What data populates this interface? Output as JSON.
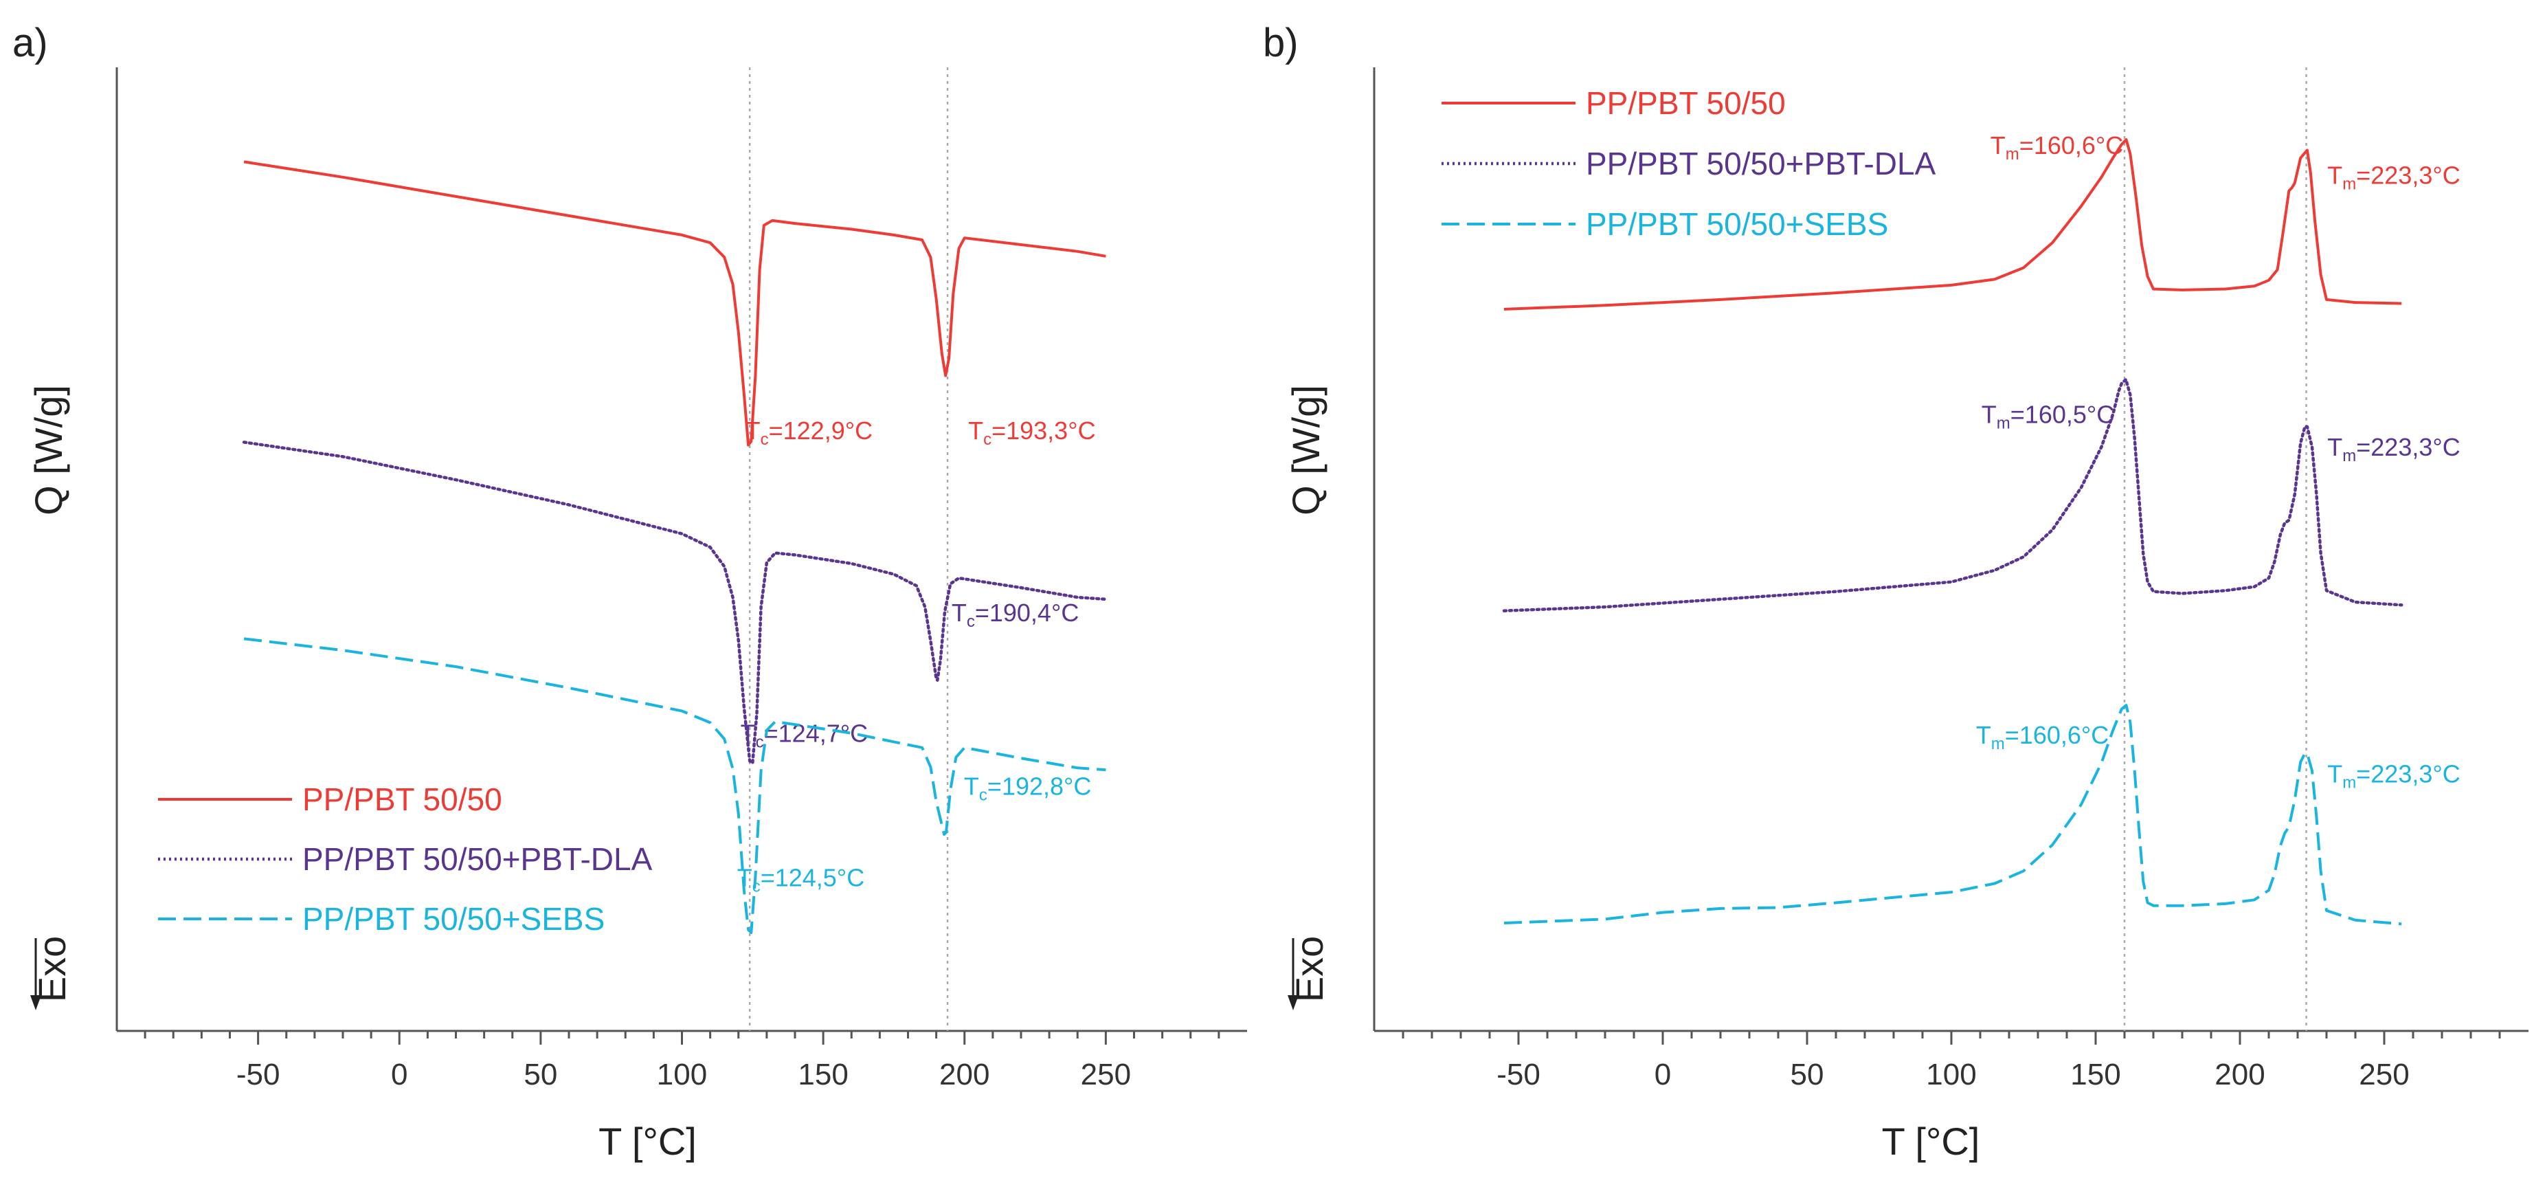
{
  "chart_data": [
    {
      "type": "line",
      "panel_label": "a)",
      "xlabel": "T [°C]",
      "ylabel": "Q [W/g]",
      "exo_label": "Exo",
      "xlim": [
        -100,
        300
      ],
      "xticks": [
        -50,
        0,
        50,
        100,
        150,
        200,
        250
      ],
      "ylim": [
        0,
        100
      ],
      "reference_lines_x": [
        124,
        194
      ],
      "legend": {
        "placement": "bottom-left",
        "entries": [
          "PP/PBT 50/50",
          "PP/PBT 50/50+PBT-DLA",
          "PP/PBT 50/50+SEBS"
        ]
      },
      "series": [
        {
          "name": "PP/PBT 50/50",
          "color": "#ef3b36",
          "dash": "solid",
          "points": [
            [
              -55,
              90.2
            ],
            [
              -20,
              88.6
            ],
            [
              20,
              86.6
            ],
            [
              60,
              84.6
            ],
            [
              100,
              82.6
            ],
            [
              110,
              81.8
            ],
            [
              115,
              80.3
            ],
            [
              118,
              77.5
            ],
            [
              120,
              72.5
            ],
            [
              122,
              66
            ],
            [
              123.5,
              60.8
            ],
            [
              124.5,
              61.2
            ],
            [
              126,
              68
            ],
            [
              127.5,
              79
            ],
            [
              129,
              83.6
            ],
            [
              132,
              84.1
            ],
            [
              140,
              83.8
            ],
            [
              160,
              83.2
            ],
            [
              175,
              82.6
            ],
            [
              185,
              82.1
            ],
            [
              188,
              80.3
            ],
            [
              190,
              76
            ],
            [
              192,
              70.3
            ],
            [
              193.3,
              68
            ],
            [
              194.5,
              69.8
            ],
            [
              196,
              76.5
            ],
            [
              198,
              81.2
            ],
            [
              200,
              82.3
            ],
            [
              220,
              81.6
            ],
            [
              240,
              80.9
            ],
            [
              250,
              80.4
            ]
          ],
          "annotations": [
            {
              "label": "Tc=122,9°C",
              "x": 122.9,
              "y": 63,
              "anchor": "start",
              "dx": -0.5,
              "dy": -1.6
            },
            {
              "label": "Tc=193,3°C",
              "x": 193.3,
              "y": 63,
              "anchor": "start",
              "dx": 8,
              "dy": -1.6
            }
          ]
        },
        {
          "name": "PP/PBT 50/50+PBT-DLA",
          "color": "#5a3590",
          "dash": "dot",
          "points": [
            [
              -55,
              61.1
            ],
            [
              -20,
              59.6
            ],
            [
              20,
              57.2
            ],
            [
              60,
              54.6
            ],
            [
              100,
              51.6
            ],
            [
              110,
              50.2
            ],
            [
              115,
              48.2
            ],
            [
              118,
              45
            ],
            [
              120,
              40.5
            ],
            [
              122,
              33.5
            ],
            [
              124,
              28
            ],
            [
              125,
              27.8
            ],
            [
              126.5,
              33
            ],
            [
              128,
              44
            ],
            [
              130,
              48.6
            ],
            [
              133,
              49.6
            ],
            [
              140,
              49.4
            ],
            [
              160,
              48.5
            ],
            [
              175,
              47.4
            ],
            [
              183,
              46.2
            ],
            [
              186,
              44
            ],
            [
              188,
              40.5
            ],
            [
              190,
              36.6
            ],
            [
              190.4,
              36.4
            ],
            [
              191.5,
              38.5
            ],
            [
              193,
              43.5
            ],
            [
              195,
              46.4
            ],
            [
              198,
              47
            ],
            [
              220,
              46
            ],
            [
              240,
              45
            ],
            [
              250,
              44.8
            ]
          ],
          "annotations": [
            {
              "label": "Tc=190,4°C",
              "x": 190.4,
              "y": 43,
              "anchor": "start",
              "dx": 5,
              "dy": -0.5
            },
            {
              "label": "Tc=124,7°C",
              "x": 124.7,
              "y": 30,
              "anchor": "start",
              "dx": -4,
              "dy": 0
            }
          ]
        },
        {
          "name": "PP/PBT 50/50+SEBS",
          "color": "#19b5e0",
          "dash": "dash",
          "points": [
            [
              -55,
              40.7
            ],
            [
              -20,
              39.5
            ],
            [
              20,
              37.8
            ],
            [
              60,
              35.6
            ],
            [
              100,
              33.2
            ],
            [
              110,
              32
            ],
            [
              115,
              30.3
            ],
            [
              118,
              27.2
            ],
            [
              120,
              22.5
            ],
            [
              122,
              14.5
            ],
            [
              123.5,
              10.5
            ],
            [
              124.5,
              10.2
            ],
            [
              126,
              16
            ],
            [
              128,
              27
            ],
            [
              130,
              31.2
            ],
            [
              133,
              32.1
            ],
            [
              140,
              31.8
            ],
            [
              160,
              30.9
            ],
            [
              175,
              30
            ],
            [
              185,
              29.4
            ],
            [
              188,
              27.4
            ],
            [
              190,
              23.8
            ],
            [
              192.8,
              20.4
            ],
            [
              193.5,
              20.6
            ],
            [
              195,
              25
            ],
            [
              197,
              28.4
            ],
            [
              200,
              29.4
            ],
            [
              220,
              28.3
            ],
            [
              240,
              27.3
            ],
            [
              250,
              27.1
            ]
          ],
          "annotations": [
            {
              "label": "Tc=192,8°C",
              "x": 192.8,
              "y": 25,
              "anchor": "start",
              "dx": 7,
              "dy": -0.5
            },
            {
              "label": "Tc=124,5°C",
              "x": 124.5,
              "y": 15,
              "anchor": "start",
              "dx": -5,
              "dy": 0
            }
          ]
        }
      ]
    },
    {
      "type": "line",
      "panel_label": "b)",
      "xlabel": "T [°C]",
      "ylabel": "Q [W/g]",
      "exo_label": "Exo",
      "xlim": [
        -100,
        300
      ],
      "xticks": [
        -50,
        0,
        50,
        100,
        150,
        200,
        250
      ],
      "ylim": [
        0,
        100
      ],
      "reference_lines_x": [
        160,
        223
      ],
      "legend": {
        "placement": "top-left",
        "entries": [
          "PP/PBT 50/50",
          "PP/PBT 50/50+PBT-DLA",
          "PP/PBT 50/50+SEBS"
        ]
      },
      "series": [
        {
          "name": "PP/PBT 50/50",
          "color": "#ef3b36",
          "dash": "solid",
          "points": [
            [
              -55,
              74.9
            ],
            [
              -20,
              75.3
            ],
            [
              20,
              75.9
            ],
            [
              60,
              76.6
            ],
            [
              100,
              77.4
            ],
            [
              115,
              78
            ],
            [
              125,
              79.2
            ],
            [
              135,
              81.8
            ],
            [
              145,
              85.6
            ],
            [
              152,
              88.6
            ],
            [
              156,
              90.6
            ],
            [
              159,
              92
            ],
            [
              160.6,
              92.5
            ],
            [
              162,
              91
            ],
            [
              164,
              86.5
            ],
            [
              166,
              81.5
            ],
            [
              168,
              78.3
            ],
            [
              170,
              77
            ],
            [
              180,
              76.9
            ],
            [
              195,
              77
            ],
            [
              205,
              77.3
            ],
            [
              210,
              77.9
            ],
            [
              213,
              79
            ],
            [
              215,
              83
            ],
            [
              217,
              87.2
            ],
            [
              218,
              87.5
            ],
            [
              219,
              88
            ],
            [
              221,
              90.6
            ],
            [
              223.3,
              91.4
            ],
            [
              224.5,
              89
            ],
            [
              226,
              84
            ],
            [
              228,
              78.5
            ],
            [
              230,
              75.9
            ],
            [
              240,
              75.6
            ],
            [
              256,
              75.5
            ]
          ],
          "annotations": [
            {
              "label": "Tm=160,6°C",
              "x": 160.6,
              "y": 92.5,
              "anchor": "end",
              "dx": -1,
              "dy": -1.5
            },
            {
              "label": "Tm=223,3°C",
              "x": 223.3,
              "y": 91.4,
              "anchor": "start",
              "dx": 7,
              "dy": -3.5
            }
          ]
        },
        {
          "name": "PP/PBT 50/50+PBT-DLA",
          "color": "#5a3590",
          "dash": "dot",
          "points": [
            [
              -55,
              43.6
            ],
            [
              -20,
              44
            ],
            [
              20,
              44.8
            ],
            [
              60,
              45.6
            ],
            [
              100,
              46.6
            ],
            [
              115,
              47.8
            ],
            [
              125,
              49.2
            ],
            [
              135,
              52
            ],
            [
              145,
              56.4
            ],
            [
              152,
              60.6
            ],
            [
              156,
              64
            ],
            [
              158,
              66.4
            ],
            [
              159,
              67.2
            ],
            [
              160.5,
              67.6
            ],
            [
              162,
              66
            ],
            [
              163.5,
              61.5
            ],
            [
              165,
              55.5
            ],
            [
              166.5,
              49.5
            ],
            [
              168,
              46.6
            ],
            [
              170,
              45.6
            ],
            [
              180,
              45.4
            ],
            [
              195,
              45.7
            ],
            [
              205,
              46.1
            ],
            [
              210,
              47
            ],
            [
              212,
              48.7
            ],
            [
              214,
              51.5
            ],
            [
              215.5,
              52.7
            ],
            [
              217,
              53
            ],
            [
              219,
              55.7
            ],
            [
              221,
              61
            ],
            [
              222.5,
              62.7
            ],
            [
              223.3,
              62.7
            ],
            [
              225,
              60.6
            ],
            [
              226.5,
              55.8
            ],
            [
              228,
              49.6
            ],
            [
              230,
              45.7
            ],
            [
              240,
              44.5
            ],
            [
              256,
              44.2
            ]
          ],
          "annotations": [
            {
              "label": "Tm=160,5°C",
              "x": 160.5,
              "y": 67.6,
              "anchor": "end",
              "dx": -4,
              "dy": -4.5
            },
            {
              "label": "Tm=223,3°C",
              "x": 223.3,
              "y": 62.7,
              "anchor": "start",
              "dx": 7,
              "dy": -3
            }
          ]
        },
        {
          "name": "PP/PBT 50/50+SEBS",
          "color": "#19b5e0",
          "dash": "dash",
          "points": [
            [
              -55,
              11.2
            ],
            [
              -20,
              11.6
            ],
            [
              0,
              12.3
            ],
            [
              20,
              12.7
            ],
            [
              40,
              12.8
            ],
            [
              60,
              13.3
            ],
            [
              100,
              14.4
            ],
            [
              115,
              15.3
            ],
            [
              125,
              16.6
            ],
            [
              135,
              19.3
            ],
            [
              145,
              23.5
            ],
            [
              152,
              27.8
            ],
            [
              156,
              31.2
            ],
            [
              159,
              33.4
            ],
            [
              160.6,
              33.8
            ],
            [
              162,
              32
            ],
            [
              163.5,
              27
            ],
            [
              165,
              21
            ],
            [
              166.5,
              15.5
            ],
            [
              168,
              13.3
            ],
            [
              170,
              13
            ],
            [
              180,
              13
            ],
            [
              195,
              13.2
            ],
            [
              205,
              13.6
            ],
            [
              210,
              14.6
            ],
            [
              212,
              16.3
            ],
            [
              214,
              19.2
            ],
            [
              215.5,
              20.5
            ],
            [
              217,
              21.2
            ],
            [
              219,
              24
            ],
            [
              221,
              27.9
            ],
            [
              222.5,
              28.8
            ],
            [
              223.3,
              28.8
            ],
            [
              225,
              27
            ],
            [
              226.5,
              22.3
            ],
            [
              228,
              16.6
            ],
            [
              230,
              12.5
            ],
            [
              240,
              11.5
            ],
            [
              256,
              11.1
            ]
          ],
          "annotations": [
            {
              "label": "Tm=160,6°C",
              "x": 160.6,
              "y": 33.8,
              "anchor": "end",
              "dx": -6,
              "dy": -4
            },
            {
              "label": "Tm=223,3°C",
              "x": 223.3,
              "y": 28.8,
              "anchor": "start",
              "dx": 7,
              "dy": -3
            }
          ]
        }
      ]
    }
  ]
}
